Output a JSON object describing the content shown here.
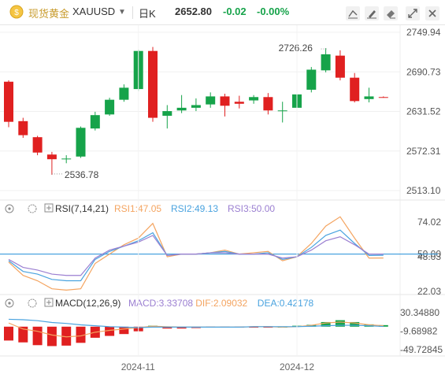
{
  "header": {
    "symbol_name": "现货黄金",
    "ticker": "XAUUSD",
    "period": "日K",
    "price": "2652.80",
    "change": "-0.02",
    "change_pct": "-0.00%"
  },
  "toolbar_icons": [
    "draw-line-icon",
    "draw-pen-icon",
    "erase-icon",
    "fullscreen-icon",
    "close-icon"
  ],
  "colors": {
    "up": "#16a34a",
    "down": "#e02020",
    "rsi1": "#f4a460",
    "rsi2": "#4aa3df",
    "rsi3": "#9b7fd1",
    "macd_line": "#f4a460",
    "dea_line": "#4aa3df",
    "ref_line": "#4aa3df"
  },
  "chart_data": [
    {
      "type": "candlestick",
      "title": "",
      "y_ticks": [
        "2749.94",
        "2690.73",
        "2631.52",
        "2572.31",
        "2513.10"
      ],
      "ylim": [
        2513.1,
        2749.94
      ],
      "annotations": [
        {
          "label": "2726.26",
          "value": 2726.26,
          "index": 22
        },
        {
          "label": "2536.78",
          "value": 2536.78,
          "index": 3
        }
      ],
      "candles": [
        {
          "o": 2676,
          "c": 2616,
          "h": 2678,
          "l": 2608
        },
        {
          "o": 2617,
          "c": 2596,
          "h": 2622,
          "l": 2592
        },
        {
          "o": 2593,
          "c": 2570,
          "h": 2595,
          "l": 2566
        },
        {
          "o": 2567,
          "c": 2560,
          "h": 2571,
          "l": 2536.78
        },
        {
          "o": 2560,
          "c": 2561,
          "h": 2566,
          "l": 2554
        },
        {
          "o": 2564,
          "c": 2607,
          "h": 2609,
          "l": 2562
        },
        {
          "o": 2606,
          "c": 2626,
          "h": 2631,
          "l": 2603
        },
        {
          "o": 2627,
          "c": 2649,
          "h": 2652,
          "l": 2625
        },
        {
          "o": 2649,
          "c": 2667,
          "h": 2672,
          "l": 2646
        },
        {
          "o": 2665,
          "c": 2722,
          "h": 2724,
          "l": 2662
        },
        {
          "o": 2722,
          "c": 2622,
          "h": 2728,
          "l": 2616
        },
        {
          "o": 2625,
          "c": 2632,
          "h": 2641,
          "l": 2606
        },
        {
          "o": 2633,
          "c": 2637,
          "h": 2656,
          "l": 2629
        },
        {
          "o": 2637,
          "c": 2641,
          "h": 2651,
          "l": 2632
        },
        {
          "o": 2642,
          "c": 2654,
          "h": 2660,
          "l": 2637
        },
        {
          "o": 2654,
          "c": 2640,
          "h": 2658,
          "l": 2624
        },
        {
          "o": 2646,
          "c": 2643,
          "h": 2655,
          "l": 2636
        },
        {
          "o": 2648,
          "c": 2653,
          "h": 2656,
          "l": 2643
        },
        {
          "o": 2653,
          "c": 2633,
          "h": 2659,
          "l": 2627
        },
        {
          "o": 2633,
          "c": 2633,
          "h": 2646,
          "l": 2615
        },
        {
          "o": 2637,
          "c": 2657,
          "h": 2662,
          "l": 2628
        },
        {
          "o": 2664,
          "c": 2694,
          "h": 2698,
          "l": 2660
        },
        {
          "o": 2693,
          "c": 2717,
          "h": 2726.26,
          "l": 2690
        },
        {
          "o": 2715,
          "c": 2682,
          "h": 2723,
          "l": 2678
        },
        {
          "o": 2682,
          "c": 2647,
          "h": 2689,
          "l": 2645
        },
        {
          "o": 2650,
          "c": 2654,
          "h": 2667,
          "l": 2645
        },
        {
          "o": 2653,
          "c": 2652.8,
          "h": 2654,
          "l": 2652
        }
      ]
    },
    {
      "type": "line",
      "title": "RSI(7,14,21)",
      "legend": [
        {
          "label": "RSI1:47.05",
          "color": "#f4a460"
        },
        {
          "label": "RSI2:49.13",
          "color": "#4aa3df"
        },
        {
          "label": "RSI3:50.00",
          "color": "#9b7fd1"
        }
      ],
      "y_ticks": [
        "74.02",
        "50.00",
        "48.03",
        "22.03"
      ],
      "ylim": [
        22.03,
        74.02
      ],
      "ref_line": 50.0,
      "series": [
        {
          "name": "RSI1",
          "values": [
            44,
            34,
            30,
            24,
            23,
            24,
            43,
            50,
            57,
            62,
            73,
            48,
            50,
            50,
            51,
            53,
            50,
            51,
            52,
            45,
            48,
            58,
            71,
            78,
            62,
            47,
            47.05
          ]
        },
        {
          "name": "RSI2",
          "values": [
            45,
            37,
            35,
            31,
            30,
            30,
            46,
            52,
            56,
            60,
            66,
            49,
            50,
            50,
            51,
            52,
            50,
            50,
            51,
            46,
            48,
            55,
            64,
            68,
            58,
            49,
            49.13
          ]
        },
        {
          "name": "RSI3",
          "values": [
            46,
            40,
            38,
            35,
            34,
            34,
            47,
            53,
            56,
            59,
            64,
            49,
            50,
            50,
            51,
            51,
            50,
            50,
            50,
            47,
            48,
            53,
            60,
            63,
            57,
            50,
            50.0
          ]
        }
      ]
    },
    {
      "type": "bar+line",
      "title": "MACD(12,26,9)",
      "legend": [
        {
          "label": "MACD:3.33708",
          "color": "#9b7fd1"
        },
        {
          "label": "DIF:2.09032",
          "color": "#f4a460"
        },
        {
          "label": "DEA:0.42178",
          "color": "#4aa3df"
        }
      ],
      "y_ticks": [
        "30.34880",
        "-9.68982",
        "-49.72845"
      ],
      "ylim": [
        -49.72845,
        30.3488
      ],
      "macd_values": [
        -30,
        -34,
        -40,
        -42,
        -41,
        -35,
        -24,
        -20,
        -16,
        -10,
        2,
        -4,
        -4,
        -3,
        -2,
        -2,
        -1,
        -1,
        -1,
        0,
        2,
        4,
        10,
        14,
        10,
        5,
        3.33708
      ],
      "dif_values": [
        8,
        -5,
        -10,
        -18,
        -22,
        -20,
        -12,
        -8,
        -5,
        -2,
        1,
        0,
        -1,
        -1,
        -1,
        -1,
        -1,
        0,
        0,
        -1,
        0,
        3,
        8,
        10,
        8,
        4,
        2.09032
      ],
      "dea_values": [
        16,
        15,
        13,
        9,
        7,
        4,
        2,
        0,
        -1,
        -2,
        -1,
        -1,
        -1,
        -1,
        -1,
        -1,
        -1,
        0,
        0,
        0,
        0,
        1,
        2,
        3,
        3,
        2,
        0.42178
      ]
    }
  ],
  "x_axis": [
    {
      "label": "2024-11",
      "index": 9
    },
    {
      "label": "2024-12",
      "index": 20
    }
  ]
}
